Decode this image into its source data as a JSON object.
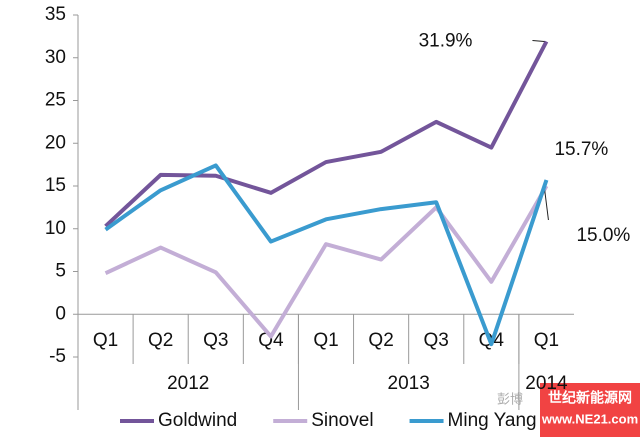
{
  "chart_data": {
    "type": "line",
    "categories": [
      "Q1",
      "Q2",
      "Q3",
      "Q4",
      "Q1",
      "Q2",
      "Q3",
      "Q4",
      "Q1"
    ],
    "groups": [
      {
        "label": "2012",
        "count": 4
      },
      {
        "label": "2013",
        "count": 4
      },
      {
        "label": "2014",
        "count": 1
      }
    ],
    "series": [
      {
        "name": "Goldwind",
        "color": "#73559a",
        "values": [
          10.3,
          16.3,
          16.2,
          14.2,
          17.8,
          19.0,
          22.5,
          19.5,
          31.9
        ],
        "value_labels": [
          null,
          null,
          null,
          null,
          null,
          null,
          null,
          null,
          "31.9%"
        ]
      },
      {
        "name": "Sinovel",
        "color": "#c3aed6",
        "values": [
          4.8,
          7.8,
          4.9,
          -2.6,
          8.2,
          6.4,
          12.5,
          3.8,
          15.0
        ],
        "value_labels": [
          null,
          null,
          null,
          null,
          null,
          null,
          null,
          null,
          "15.0%"
        ]
      },
      {
        "name": "Ming Yang",
        "color": "#3a9bcf",
        "values": [
          9.9,
          14.5,
          17.4,
          8.5,
          11.1,
          12.3,
          13.1,
          -3.5,
          15.7
        ],
        "value_labels": [
          null,
          null,
          null,
          null,
          null,
          null,
          null,
          null,
          "15.7%"
        ]
      }
    ],
    "ylim": [
      -5,
      35
    ],
    "yticks": [
      -5,
      0,
      5,
      10,
      15,
      20,
      25,
      30,
      35
    ],
    "watermark": [
      "彭博",
      "世纪新能源网",
      "www.NE21.com"
    ]
  }
}
